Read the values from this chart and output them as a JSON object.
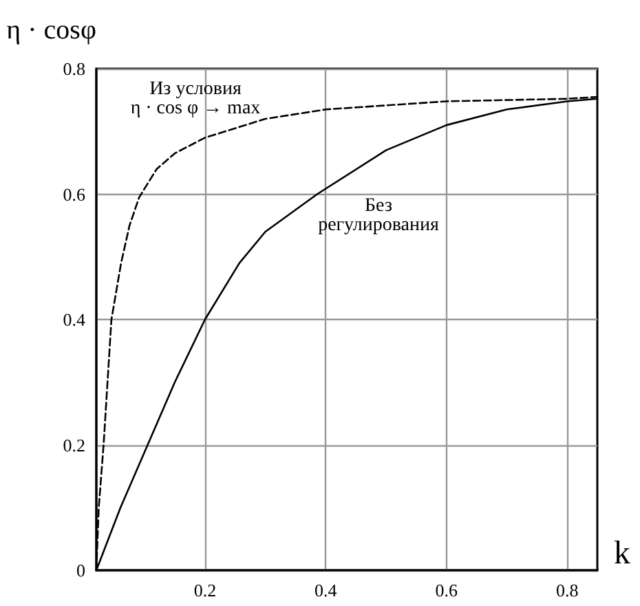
{
  "chart_data": {
    "type": "line",
    "xlabel": "k",
    "ylabel": "η · cosφ",
    "xlim": [
      0.02,
      0.85
    ],
    "xticks": [
      0.2,
      0.4,
      0.6,
      0.8
    ],
    "ylim": [
      0,
      0.8
    ],
    "yticks": [
      0,
      0.2,
      0.4,
      0.6,
      0.8
    ],
    "grid": true,
    "marker": "none",
    "series": [
      {
        "color": "#000000",
        "line_style": "solid",
        "x": [
          0.02,
          0.06,
          0.105,
          0.15,
          0.2,
          0.257,
          0.3,
          0.386,
          0.5,
          0.6,
          0.7,
          0.8,
          0.85
        ],
        "values": [
          0,
          0.1,
          0.2,
          0.3,
          0.4,
          0.49,
          0.54,
          0.6,
          0.67,
          0.71,
          0.735,
          0.748,
          0.752
        ]
      },
      {
        "color": "#000000",
        "line_style": "dashed",
        "x": [
          0.02,
          0.024,
          0.032,
          0.045,
          0.061,
          0.075,
          0.091,
          0.12,
          0.15,
          0.2,
          0.3,
          0.4,
          0.6,
          0.8,
          0.85
        ],
        "values": [
          0,
          0.1,
          0.2,
          0.4,
          0.49,
          0.55,
          0.595,
          0.64,
          0.665,
          0.69,
          0.72,
          0.735,
          0.748,
          0.752,
          0.755
        ]
      }
    ],
    "annotations": [
      "Из условия\nη · cos φ → max",
      "Без\nрегулирования"
    ]
  }
}
